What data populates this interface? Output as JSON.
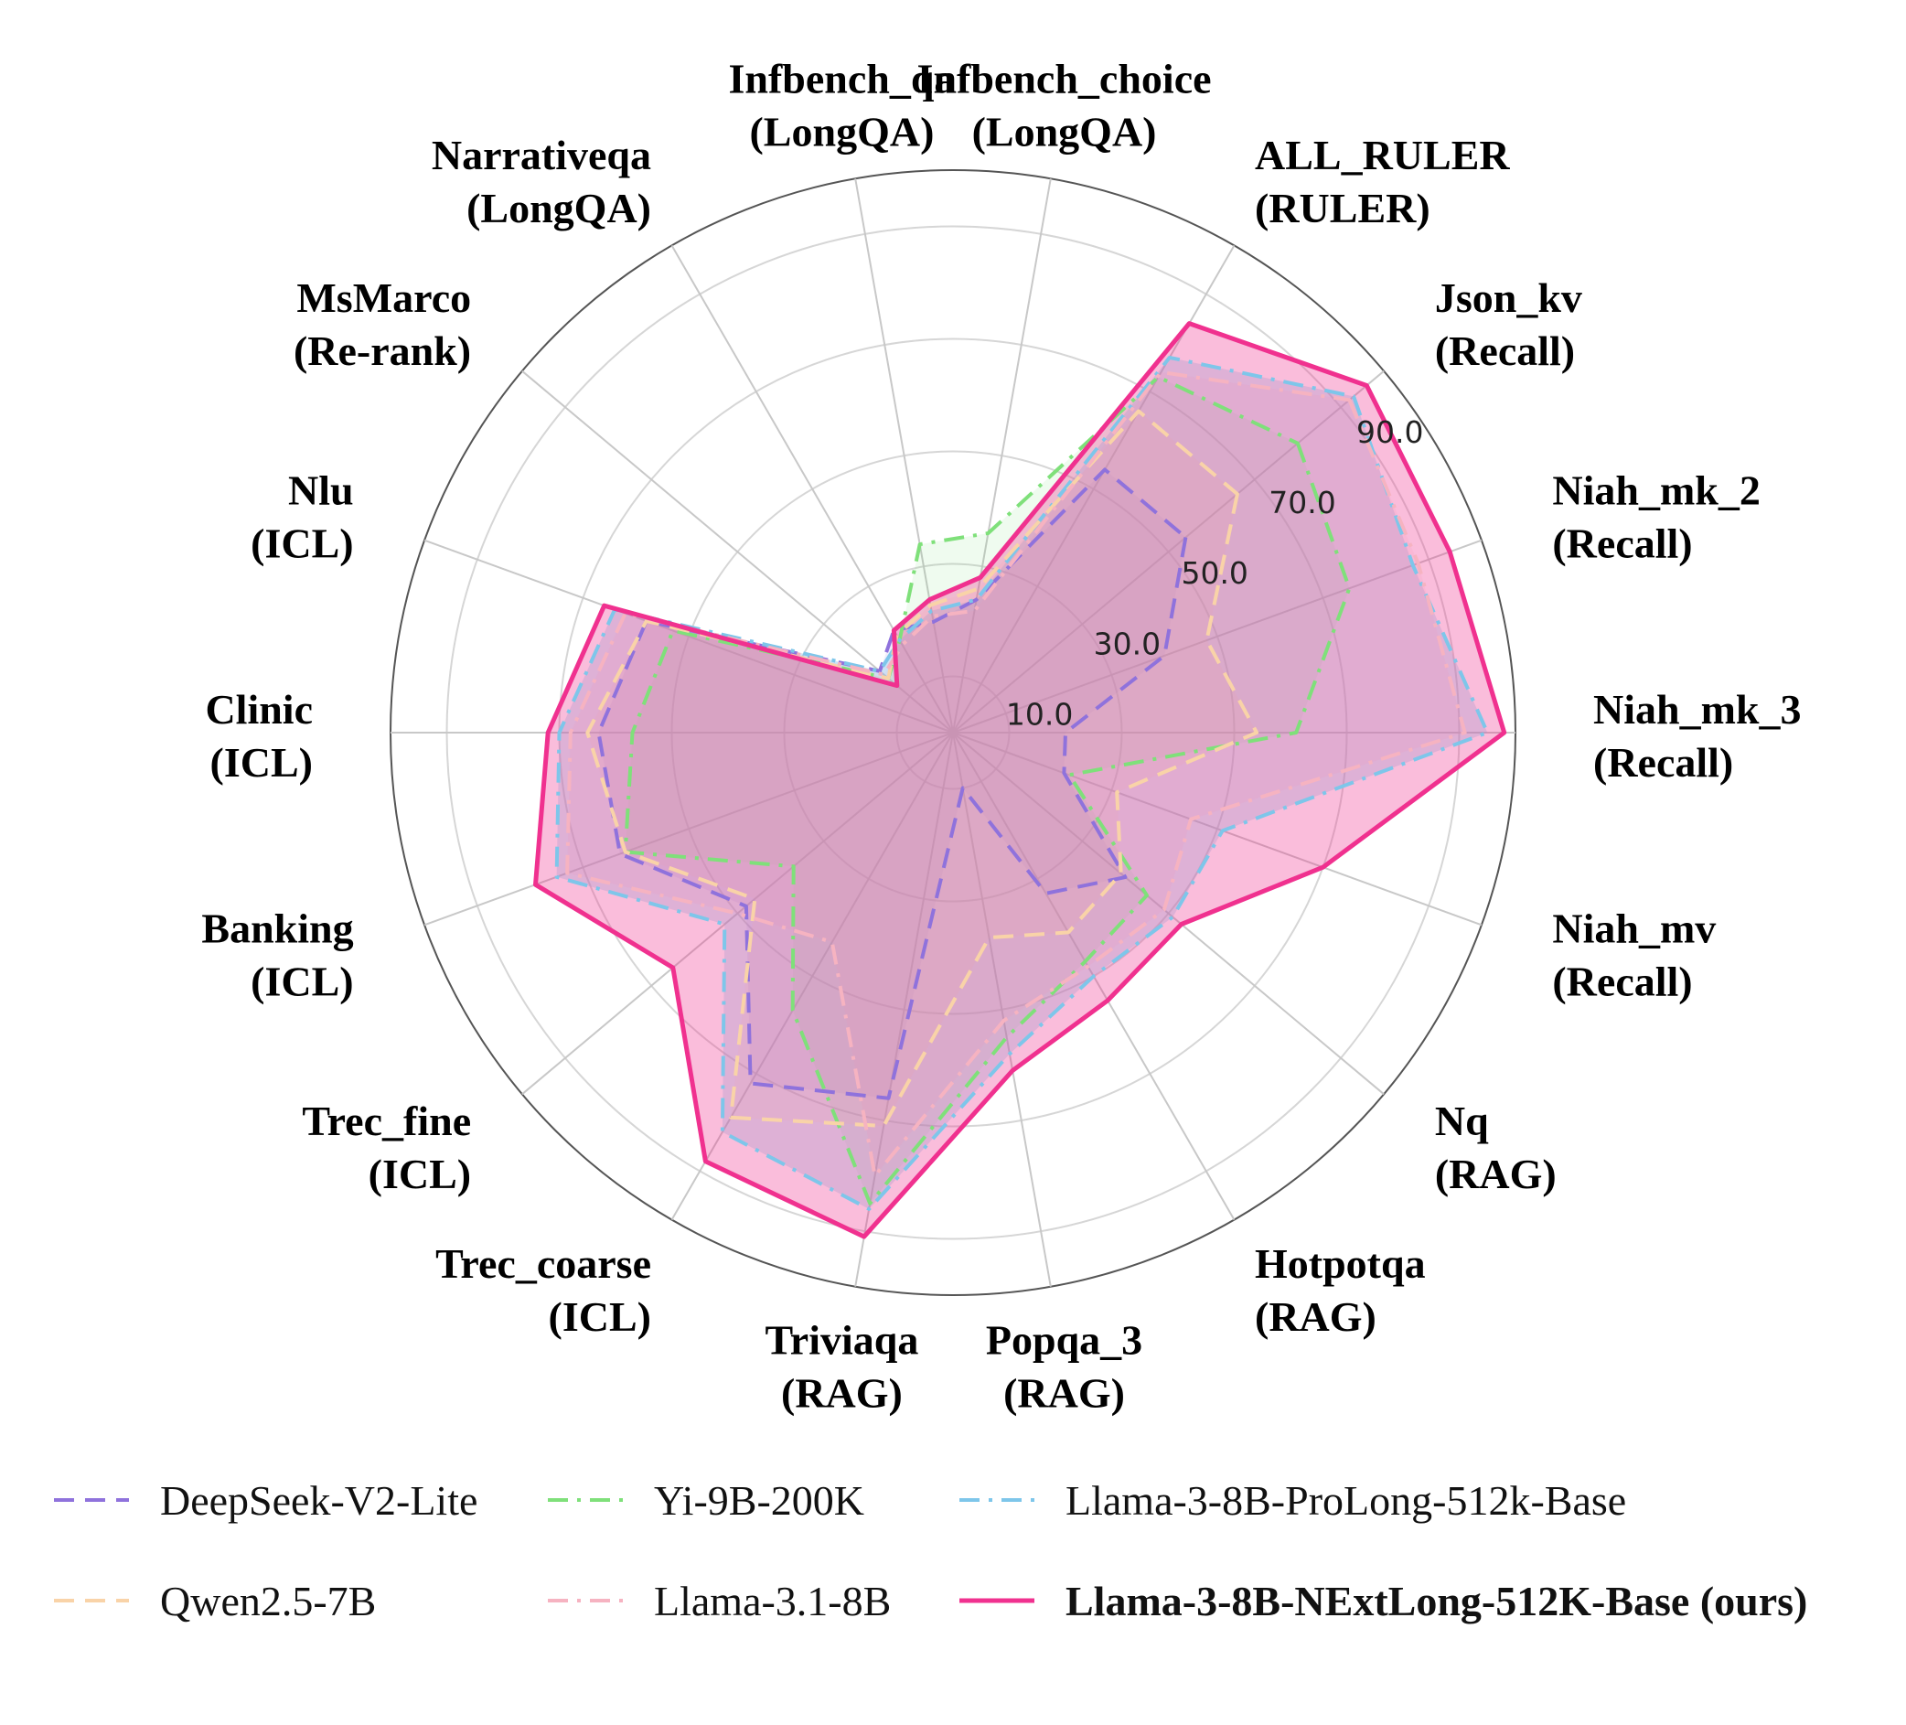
{
  "chart_data": {
    "type": "radar",
    "title": "",
    "axes": [
      {
        "name": "Json_kv",
        "group": "(Recall)"
      },
      {
        "name": "Niah_mk_2",
        "group": "(Recall)"
      },
      {
        "name": "Niah_mk_3",
        "group": "(Recall)"
      },
      {
        "name": "Niah_mv",
        "group": "(Recall)"
      },
      {
        "name": "Nq",
        "group": "(RAG)"
      },
      {
        "name": "Hotpotqa",
        "group": "(RAG)"
      },
      {
        "name": "Popqa_3",
        "group": "(RAG)"
      },
      {
        "name": "Triviaqa",
        "group": "(RAG)"
      },
      {
        "name": "Trec_coarse",
        "group": "(ICL)"
      },
      {
        "name": "Trec_fine",
        "group": "(ICL)"
      },
      {
        "name": "Banking",
        "group": "(ICL)"
      },
      {
        "name": "Clinic",
        "group": "(ICL)"
      },
      {
        "name": "Nlu",
        "group": "(ICL)"
      },
      {
        "name": "MsMarco",
        "group": "(Re-rank)"
      },
      {
        "name": "Narrativeqa",
        "group": "(LongQA)"
      },
      {
        "name": "Infbench_qa",
        "group": "(LongQA)"
      },
      {
        "name": "Infbench_choice",
        "group": "(LongQA)"
      },
      {
        "name": "ALL_RULER",
        "group": "(RULER)"
      }
    ],
    "radial_ticks": [
      "10.0",
      "30.0",
      "50.0",
      "70.0",
      "90.0"
    ],
    "rmax": 100,
    "series": [
      {
        "name": "DeepSeek-V2-Lite",
        "color": "#8f72dc",
        "dash": "dash",
        "fill": false,
        "values": [
          54,
          40,
          20,
          21,
          40,
          33,
          10,
          66,
          72,
          48,
          63,
          63,
          58,
          17,
          21,
          20,
          24,
          54
        ]
      },
      {
        "name": "Yi-9B-200K",
        "color": "#7fe07a",
        "dash": "dashdot",
        "fill": false,
        "values": [
          80,
          75,
          61,
          22,
          45,
          47,
          55,
          85,
          57,
          37,
          62,
          57,
          53,
          15,
          19,
          34,
          36,
          73
        ]
      },
      {
        "name": "Llama-3-8B-ProLong-512k-Base",
        "color": "#7ec6ea",
        "dash": "dashdot",
        "fill": true,
        "values": [
          93,
          87,
          95,
          51,
          51,
          50,
          58,
          86,
          82,
          53,
          75,
          70,
          64,
          17,
          19,
          22,
          24,
          77
        ]
      },
      {
        "name": "Qwen2.5-7B",
        "color": "#f9d3a8",
        "dash": "dash",
        "fill": false,
        "values": [
          66,
          48,
          54,
          31,
          39,
          41,
          37,
          71,
          79,
          46,
          62,
          65,
          58,
          15,
          20,
          23,
          26,
          66
        ]
      },
      {
        "name": "Llama-3.1-8B",
        "color": "#f6b3c1",
        "dash": "dashdot",
        "fill": false,
        "values": [
          92,
          88,
          91,
          45,
          49,
          48,
          52,
          80,
          43,
          50,
          73,
          68,
          62,
          16,
          18,
          21,
          22,
          74
        ]
      },
      {
        "name": "Llama-3-8B-NExtLong-512K-Base (ours)",
        "color": "#f0318f",
        "dash": "solid",
        "fill": true,
        "bold": true,
        "values": [
          96,
          94,
          98,
          70,
          53,
          55,
          61,
          91,
          88,
          65,
          79,
          72,
          66,
          13,
          21,
          24,
          28,
          84
        ]
      }
    ]
  }
}
